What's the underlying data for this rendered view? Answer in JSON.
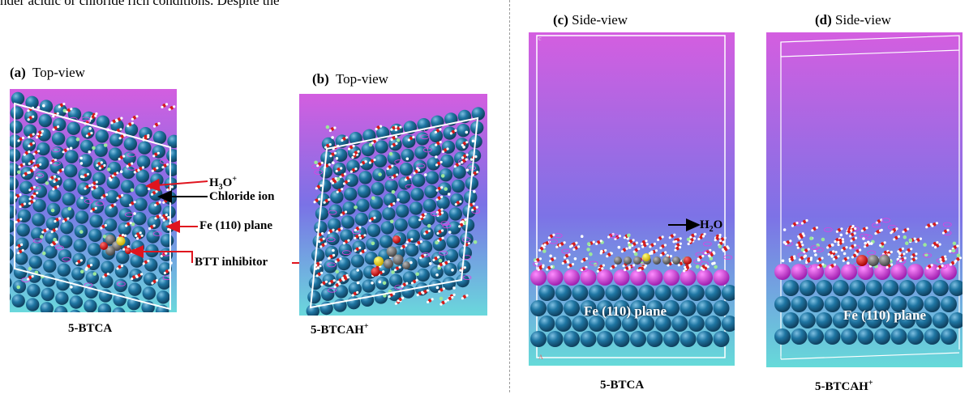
{
  "header_fragment": "nder acidic or chloride rich conditions. Despite the",
  "panels": [
    {
      "id": "a",
      "letter": "(a)",
      "view": "Top-view",
      "caption": "5-BTCA",
      "caption_sup": ""
    },
    {
      "id": "b",
      "letter": "(b)",
      "view": "Top-view",
      "caption": "5-BTCAH",
      "caption_sup": "+"
    },
    {
      "id": "c",
      "letter": "(c)",
      "view": "Side-view",
      "caption": "5-BTCA",
      "caption_sup": ""
    },
    {
      "id": "d",
      "letter": "(d)",
      "view": "Side-view",
      "caption": "5-BTCAH",
      "caption_sup": "+"
    }
  ],
  "annotations": {
    "h3o_base": "H",
    "h3o_sub": "3",
    "h3o_mid": "O",
    "h3o_sup": "+",
    "chloride": "Chloride ion",
    "fe_plane": "Fe (110) plane",
    "btt": "BTT inhibitor",
    "h2o_base": "H",
    "h2o_sub": "2",
    "h2o_end": "O"
  },
  "plane_labels": {
    "c": "Fe (110) plane",
    "d": "Fe (110) plane"
  },
  "colors": {
    "atom": "#1e6e9a",
    "atom_highlight": "#6fb3d6",
    "bg_top": "#d35ee0",
    "bg_mid": "#7b6fe6",
    "bg_bottom": "#6fd3df",
    "arrow_red": "#e0141e",
    "arrow_black": "#000000",
    "cell_line": "#ffffff",
    "divider": "#9a9a9a"
  }
}
